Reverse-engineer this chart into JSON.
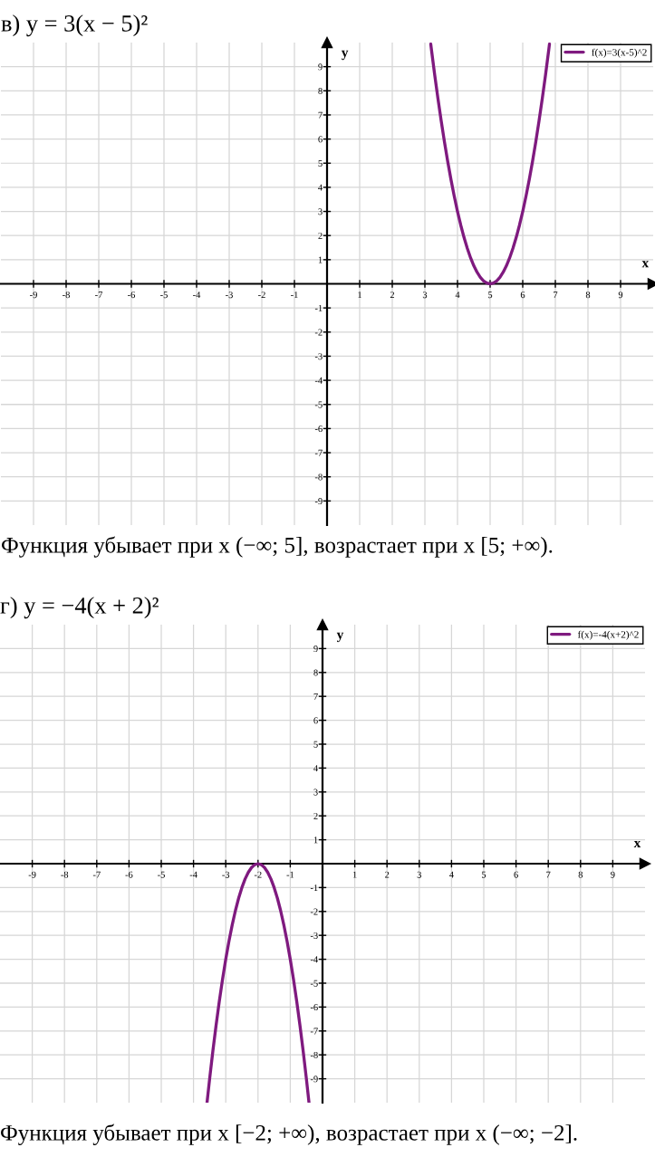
{
  "chart_data": [
    {
      "type": "line",
      "title": "в) y = 3(x − 5)²",
      "xlabel": "x",
      "ylabel": "y",
      "series": [
        {
          "name": "f(x)=3(x-5)^2",
          "color": "#7f1a7f",
          "x": [
            3.18,
            3.2,
            3.3,
            3.4,
            3.5,
            3.6,
            3.7,
            3.8,
            3.9,
            4.0,
            4.1,
            4.2,
            4.3,
            4.4,
            4.5,
            4.6,
            4.7,
            4.8,
            4.9,
            5.0,
            5.1,
            5.2,
            5.3,
            5.4,
            5.5,
            5.6,
            5.7,
            5.8,
            5.9,
            6.0,
            6.1,
            6.2,
            6.3,
            6.4,
            6.5,
            6.6,
            6.7,
            6.8,
            6.82
          ],
          "values": [
            9.94,
            9.72,
            8.67,
            7.68,
            6.75,
            5.88,
            5.07,
            4.32,
            3.63,
            3,
            2.43,
            1.92,
            1.47,
            1.08,
            0.75,
            0.48,
            0.27,
            0.12,
            0.03,
            0,
            0.03,
            0.12,
            0.27,
            0.48,
            0.75,
            1.08,
            1.47,
            1.92,
            2.43,
            3,
            3.63,
            4.32,
            5.07,
            5.88,
            6.75,
            7.68,
            8.67,
            9.72,
            9.94
          ]
        }
      ],
      "xlim": [
        -10,
        10
      ],
      "ylim": [
        -10,
        10
      ],
      "xticks": [
        -9,
        -8,
        -7,
        -6,
        -5,
        -4,
        -3,
        -2,
        -1,
        1,
        2,
        3,
        4,
        5,
        6,
        7,
        8,
        9
      ],
      "yticks": [
        -9,
        -8,
        -7,
        -6,
        -5,
        -4,
        -3,
        -2,
        -1,
        1,
        2,
        3,
        4,
        5,
        6,
        7,
        8,
        9
      ],
      "grid": true,
      "legend": "top right",
      "marker": "none",
      "line_style": "solid",
      "annotations": [
        "Функция убывает при x (−∞; 5], возрастает при x [5; +∞)."
      ]
    },
    {
      "type": "line",
      "title": "г) y = −4(x + 2)²",
      "xlabel": "x",
      "ylabel": "y",
      "series": [
        {
          "name": "f(x)=-4(x+2)^2",
          "color": "#7f1a7f",
          "x": [
            -3.58,
            -3.5,
            -3.4,
            -3.3,
            -3.2,
            -3.1,
            -3.0,
            -2.9,
            -2.8,
            -2.7,
            -2.6,
            -2.5,
            -2.4,
            -2.3,
            -2.2,
            -2.1,
            -2.0,
            -1.9,
            -1.8,
            -1.7,
            -1.6,
            -1.5,
            -1.4,
            -1.3,
            -1.2,
            -1.1,
            -1.0,
            -0.9,
            -0.8,
            -0.7,
            -0.6,
            -0.5,
            -0.42
          ],
          "values": [
            -9.99,
            -9,
            -7.84,
            -6.76,
            -5.76,
            -4.84,
            -4,
            -3.24,
            -2.56,
            -1.96,
            -1.44,
            -1,
            -0.64,
            -0.36,
            -0.16,
            -0.04,
            0,
            -0.04,
            -0.16,
            -0.36,
            -0.64,
            -1,
            -1.44,
            -1.96,
            -2.56,
            -3.24,
            -4,
            -4.84,
            -5.76,
            -6.76,
            -7.84,
            -9,
            -9.99
          ]
        }
      ],
      "xlim": [
        -10,
        10
      ],
      "ylim": [
        -10,
        10
      ],
      "xticks": [
        -9,
        -8,
        -7,
        -6,
        -5,
        -4,
        -3,
        -2,
        -1,
        1,
        2,
        3,
        4,
        5,
        6,
        7,
        8,
        9
      ],
      "yticks": [
        -9,
        -8,
        -7,
        -6,
        -5,
        -4,
        -3,
        -2,
        -1,
        1,
        2,
        3,
        4,
        5,
        6,
        7,
        8,
        9
      ],
      "grid": true,
      "legend": "top right",
      "marker": "none",
      "line_style": "solid",
      "annotations": [
        "Функция убывает при x [−2; +∞), возрастает при x (−∞; −2]."
      ]
    }
  ]
}
